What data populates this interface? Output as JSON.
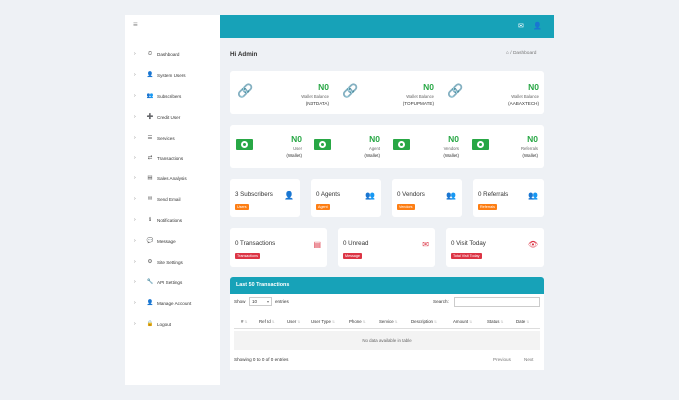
{
  "sidebar": {
    "toggle_icon": "hamburger-icon",
    "items": [
      {
        "label": "Dashboard",
        "icon": "tachometer-icon",
        "glyph": "⏲"
      },
      {
        "label": "System Users",
        "icon": "user-icon",
        "glyph": "👤"
      },
      {
        "label": "Subscribers",
        "icon": "users-icon",
        "glyph": "👥"
      },
      {
        "label": "Credit User",
        "icon": "user-plus-icon",
        "glyph": "➕"
      },
      {
        "label": "Services",
        "icon": "list-icon",
        "glyph": "☰"
      },
      {
        "label": "Transactions",
        "icon": "transactions-icon",
        "glyph": "⇄"
      },
      {
        "label": "Sales Analysis",
        "icon": "chart-icon",
        "glyph": "▤"
      },
      {
        "label": "Send Email",
        "icon": "envelope-icon",
        "glyph": "✉"
      },
      {
        "label": "Notifications",
        "icon": "bell-icon",
        "glyph": "ℹ"
      },
      {
        "label": "Message",
        "icon": "comments-icon",
        "glyph": "💬"
      },
      {
        "label": "Site Settings",
        "icon": "gear-icon",
        "glyph": "⚙"
      },
      {
        "label": "API Settings",
        "icon": "wrench-icon",
        "glyph": "🔧"
      },
      {
        "label": "Manage Account",
        "icon": "user-cog-icon",
        "glyph": "👤"
      },
      {
        "label": "Logout",
        "icon": "lock-icon",
        "glyph": "🔒"
      }
    ]
  },
  "topbar": {
    "icons": [
      "envelope-icon",
      "user-icon"
    ]
  },
  "header": {
    "greeting": "Hi Admin",
    "breadcrumb_home_icon": "home-icon",
    "breadcrumb_sep": "/",
    "breadcrumb_current": "Dashboard"
  },
  "wallets": [
    {
      "amount": "N0",
      "label": "Wallet Balance",
      "name": "(N3TDATA)"
    },
    {
      "amount": "N0",
      "label": "Wallet Balance",
      "name": "(TOPUPMATE)"
    },
    {
      "amount": "N0",
      "label": "Wallet Balance",
      "name": "(AABAXTECH)"
    }
  ],
  "balances": [
    {
      "amount": "N0",
      "label": "User",
      "name": "(Wallet)"
    },
    {
      "amount": "N0",
      "label": "Agent",
      "name": "(Wallet)"
    },
    {
      "amount": "N0",
      "label": "Vendors",
      "name": "(Wallet)"
    },
    {
      "amount": "N0",
      "label": "Referrals",
      "name": "(Wallet)"
    }
  ],
  "stats": [
    {
      "count": "3 Subscribers",
      "badge": "Users",
      "badge_color": "#fd7e14",
      "icon": "user-icon"
    },
    {
      "count": "0 Agents",
      "badge": "Agent",
      "badge_color": "#fd7e14",
      "icon": "users-icon"
    },
    {
      "count": "0 Vendors",
      "badge": "Vendors",
      "badge_color": "#fd7e14",
      "icon": "users-icon"
    },
    {
      "count": "0 Referrals",
      "badge": "Referrals",
      "badge_color": "#fd7e14",
      "icon": "users-icon"
    }
  ],
  "stats2": [
    {
      "count": "0 Transactions",
      "badge": "Transactions",
      "badge_color": "#dc3545",
      "icon": "receipt-icon"
    },
    {
      "count": "0 Unread",
      "badge": "Message",
      "badge_color": "#dc3545",
      "icon": "envelope-icon"
    },
    {
      "count": "0 Visit Today",
      "badge": "Total Visit Today",
      "badge_color": "#dc3545",
      "icon": "eye-icon"
    }
  ],
  "transactions": {
    "title": "Last 50 Transactions",
    "show_label": "Show",
    "page_size": "10",
    "entries_label": "entries",
    "search_label": "Search:",
    "search_value": "",
    "columns": [
      "#",
      "Ref Id",
      "User",
      "User Type",
      "Phone",
      "Service",
      "Description",
      "Amount",
      "Status",
      "Date"
    ],
    "empty_message": "No data available in table",
    "info": "Showing 0 to 0 of 0 entries",
    "prev_label": "Previous",
    "next_label": "Next"
  },
  "colors": {
    "accent": "#17a2b8",
    "money_green": "#28a745",
    "stat_orange": "#fd7e14",
    "stat_red": "#dc3545"
  }
}
